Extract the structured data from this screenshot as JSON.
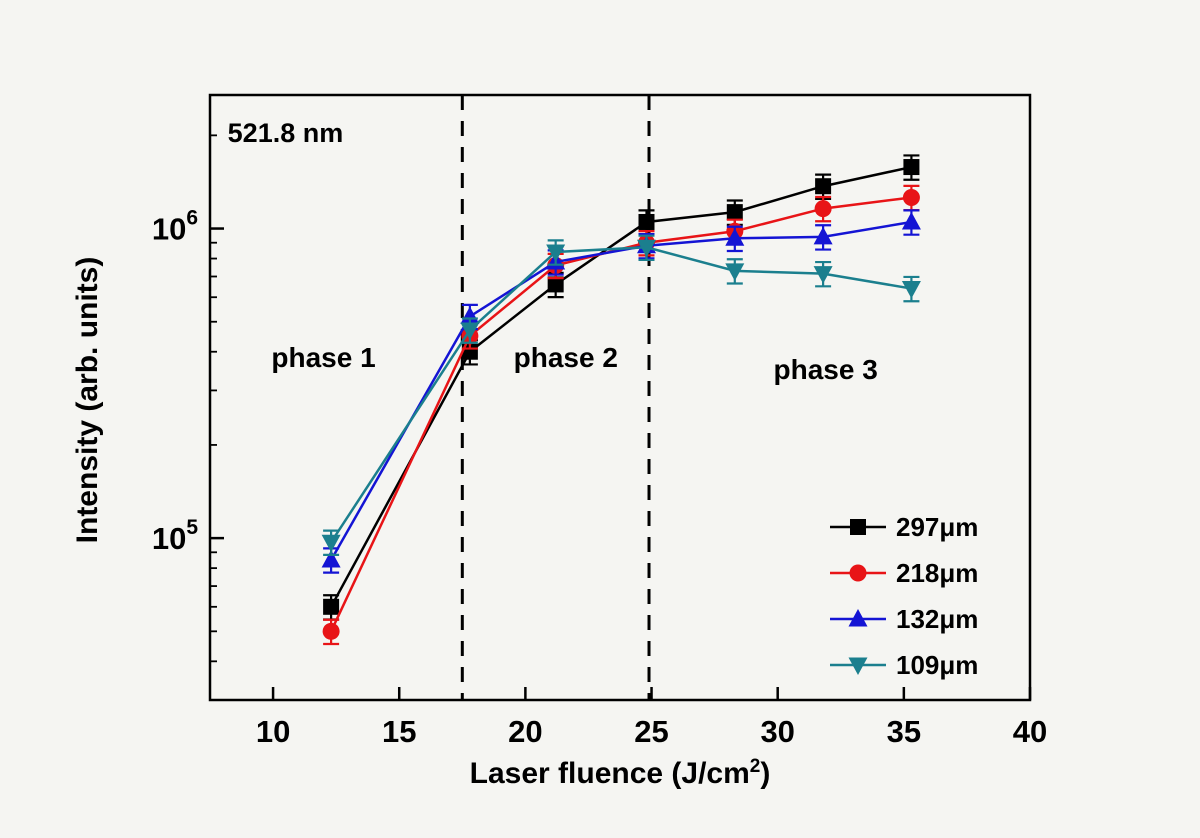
{
  "chart_data": {
    "type": "line",
    "title": "",
    "xlabel": {
      "text": "Laser fluence (J/cm",
      "sup": "2",
      "close": ")"
    },
    "ylabel": "Intensity (arb. units)",
    "x_axis": {
      "min": 7.5,
      "max": 40,
      "ticks": [
        10,
        15,
        20,
        25,
        30,
        35,
        40
      ]
    },
    "y_axis": {
      "scale": "log",
      "min": 30000,
      "max": 2700000,
      "ticks": [
        {
          "value": 100000,
          "base": "10",
          "exp": "5"
        },
        {
          "value": 1000000,
          "base": "10",
          "exp": "6"
        }
      ]
    },
    "x": [
      12.3,
      17.8,
      21.2,
      24.8,
      28.3,
      31.8,
      35.3
    ],
    "series": [
      {
        "name": "297μm",
        "color": "#000000",
        "marker": "square",
        "values": [
          60000,
          400000,
          660000,
          1050000,
          1130000,
          1370000,
          1580000
        ]
      },
      {
        "name": "218μm",
        "color": "#e81417",
        "marker": "circle",
        "values": [
          50000,
          450000,
          760000,
          900000,
          980000,
          1160000,
          1260000
        ]
      },
      {
        "name": "132μm",
        "color": "#1414d4",
        "marker": "triangle-up",
        "values": [
          85000,
          520000,
          780000,
          880000,
          930000,
          940000,
          1050000
        ]
      },
      {
        "name": "109μm",
        "color": "#1b7f8e",
        "marker": "triangle-down",
        "values": [
          97000,
          470000,
          840000,
          870000,
          730000,
          715000,
          640000
        ]
      }
    ],
    "error_fraction": 0.09,
    "phase_boundaries_x": [
      17.5,
      24.9
    ],
    "annotations": [
      {
        "name": "wavelength-label",
        "text": "521.8 nm",
        "x": 8.2,
        "y": 2050000,
        "anchor": "start",
        "size": 27
      },
      {
        "name": "phase-1-label",
        "text": "phase 1",
        "x": 12.0,
        "y": 385000,
        "anchor": "middle",
        "size": 28
      },
      {
        "name": "phase-2-label",
        "text": "phase 2",
        "x": 21.6,
        "y": 385000,
        "anchor": "middle",
        "size": 28
      },
      {
        "name": "phase-3-label",
        "text": "phase 3",
        "x": 31.9,
        "y": 352000,
        "anchor": "middle",
        "size": 28
      }
    ],
    "legend": {
      "position": "inside-right-bottom",
      "items": [
        "297μm",
        "218μm",
        "132μm",
        "109μm"
      ]
    },
    "grid": "off"
  }
}
